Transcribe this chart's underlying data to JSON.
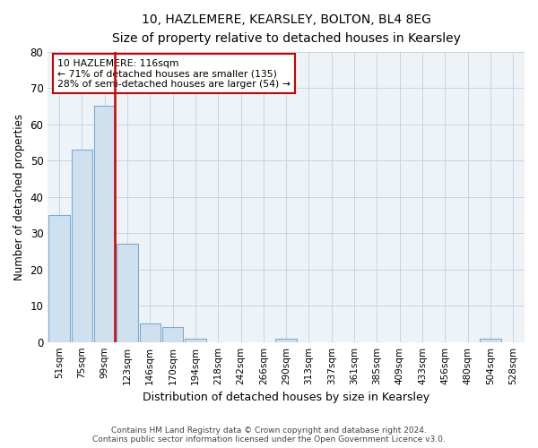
{
  "title_line1": "10, HAZLEMERE, KEARSLEY, BOLTON, BL4 8EG",
  "title_line2": "Size of property relative to detached houses in Kearsley",
  "xlabel": "Distribution of detached houses by size in Kearsley",
  "ylabel": "Number of detached properties",
  "footer_line1": "Contains HM Land Registry data © Crown copyright and database right 2024.",
  "footer_line2": "Contains public sector information licensed under the Open Government Licence v3.0.",
  "categories": [
    "51sqm",
    "75sqm",
    "99sqm",
    "123sqm",
    "146sqm",
    "170sqm",
    "194sqm",
    "218sqm",
    "242sqm",
    "266sqm",
    "290sqm",
    "313sqm",
    "337sqm",
    "361sqm",
    "385sqm",
    "409sqm",
    "433sqm",
    "456sqm",
    "480sqm",
    "504sqm",
    "528sqm"
  ],
  "values": [
    35,
    53,
    65,
    27,
    5,
    4,
    1,
    0,
    0,
    0,
    1,
    0,
    0,
    0,
    0,
    0,
    0,
    0,
    0,
    1,
    0
  ],
  "bar_color": "#cfe0ef",
  "bar_edge_color": "#7badd1",
  "grid_color": "#c8d4e0",
  "marker_bin_index": 2,
  "marker_color": "#cc0000",
  "annotation_text_line1": "10 HAZLEMERE: 116sqm",
  "annotation_text_line2": "← 71% of detached houses are smaller (135)",
  "annotation_text_line3": "28% of semi-detached houses are larger (54) →",
  "annotation_box_facecolor": "#ffffff",
  "annotation_box_edgecolor": "#cc0000",
  "ylim": [
    0,
    80
  ],
  "yticks": [
    0,
    10,
    20,
    30,
    40,
    50,
    60,
    70,
    80
  ],
  "plot_bg_color": "#eef3f8"
}
